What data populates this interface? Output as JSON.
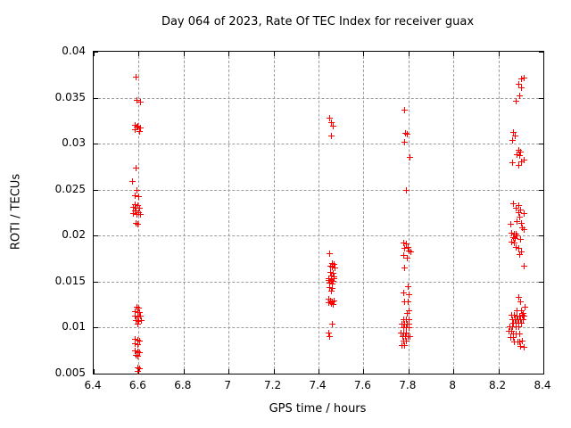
{
  "chart_data": {
    "type": "scatter",
    "title": "Day 064 of 2023, Rate Of TEC Index for receiver guax",
    "xlabel": "GPS time / hours",
    "ylabel": "ROTI / TECUs",
    "xlim": [
      6.4,
      8.4
    ],
    "ylim": [
      0.005,
      0.04
    ],
    "xticks": [
      {
        "value": 6.4,
        "label": "6.4"
      },
      {
        "value": 6.6,
        "label": "6.6"
      },
      {
        "value": 6.8,
        "label": "6.8"
      },
      {
        "value": 7.0,
        "label": "7"
      },
      {
        "value": 7.2,
        "label": "7.2"
      },
      {
        "value": 7.4,
        "label": "7.4"
      },
      {
        "value": 7.6,
        "label": "7.6"
      },
      {
        "value": 7.8,
        "label": "7.8"
      },
      {
        "value": 8.0,
        "label": "8"
      },
      {
        "value": 8.2,
        "label": "8.2"
      },
      {
        "value": 8.4,
        "label": "8.4"
      }
    ],
    "yticks": [
      {
        "value": 0.005,
        "label": "0.005"
      },
      {
        "value": 0.01,
        "label": "0.01"
      },
      {
        "value": 0.015,
        "label": "0.015"
      },
      {
        "value": 0.02,
        "label": "0.02"
      },
      {
        "value": 0.025,
        "label": "0.025"
      },
      {
        "value": 0.03,
        "label": "0.03"
      },
      {
        "value": 0.035,
        "label": "0.035"
      },
      {
        "value": 0.04,
        "label": "0.04"
      }
    ],
    "grid": true,
    "grid_color": "#9c9c9c",
    "legend": "none",
    "marker": "plus",
    "marker_color": "#ff0000",
    "marker_size": 7,
    "series": [
      {
        "name": "ROTI",
        "points": [
          [
            6.59,
            0.0372
          ],
          [
            6.595,
            0.0347
          ],
          [
            6.61,
            0.0345
          ],
          [
            6.585,
            0.032
          ],
          [
            6.6,
            0.0319
          ],
          [
            6.594,
            0.0318
          ],
          [
            6.612,
            0.0317
          ],
          [
            6.588,
            0.0315
          ],
          [
            6.605,
            0.0313
          ],
          [
            6.59,
            0.0273
          ],
          [
            6.575,
            0.0258
          ],
          [
            6.595,
            0.0249
          ],
          [
            6.588,
            0.0243
          ],
          [
            6.601,
            0.0242
          ],
          [
            6.585,
            0.0233
          ],
          [
            6.598,
            0.0232
          ],
          [
            6.578,
            0.023
          ],
          [
            6.592,
            0.0229
          ],
          [
            6.606,
            0.0229
          ],
          [
            6.588,
            0.0226
          ],
          [
            6.601,
            0.0225
          ],
          [
            6.578,
            0.0224
          ],
          [
            6.595,
            0.0223
          ],
          [
            6.61,
            0.0223
          ],
          [
            6.59,
            0.0213
          ],
          [
            6.6,
            0.0212
          ],
          [
            6.593,
            0.0122
          ],
          [
            6.601,
            0.0121
          ],
          [
            6.585,
            0.0117
          ],
          [
            6.597,
            0.0116
          ],
          [
            6.608,
            0.0116
          ],
          [
            6.585,
            0.0112
          ],
          [
            6.599,
            0.0111
          ],
          [
            6.612,
            0.0112
          ],
          [
            6.59,
            0.0107
          ],
          [
            6.602,
            0.0106
          ],
          [
            6.614,
            0.0107
          ],
          [
            6.597,
            0.0103
          ],
          [
            6.585,
            0.0087
          ],
          [
            6.598,
            0.0086
          ],
          [
            6.608,
            0.0085
          ],
          [
            6.588,
            0.0082
          ],
          [
            6.6,
            0.0081
          ],
          [
            6.587,
            0.0074
          ],
          [
            6.598,
            0.0073
          ],
          [
            6.608,
            0.0072
          ],
          [
            6.59,
            0.0069
          ],
          [
            6.6,
            0.0068
          ],
          [
            6.6,
            0.0056
          ],
          [
            6.608,
            0.0055
          ],
          [
            6.597,
            0.0052
          ],
          [
            7.451,
            0.0327
          ],
          [
            7.458,
            0.0322
          ],
          [
            7.468,
            0.0319
          ],
          [
            7.46,
            0.0308
          ],
          [
            7.452,
            0.018
          ],
          [
            7.462,
            0.0169
          ],
          [
            7.472,
            0.0168
          ],
          [
            7.455,
            0.0166
          ],
          [
            7.465,
            0.0165
          ],
          [
            7.475,
            0.0164
          ],
          [
            7.456,
            0.016
          ],
          [
            7.468,
            0.0159
          ],
          [
            7.458,
            0.0156
          ],
          [
            7.47,
            0.0155
          ],
          [
            7.448,
            0.0153
          ],
          [
            7.46,
            0.0152
          ],
          [
            7.473,
            0.0153
          ],
          [
            7.446,
            0.0151
          ],
          [
            7.458,
            0.0151
          ],
          [
            7.468,
            0.015
          ],
          [
            7.452,
            0.0148
          ],
          [
            7.464,
            0.0147
          ],
          [
            7.453,
            0.0143
          ],
          [
            7.465,
            0.0142
          ],
          [
            7.458,
            0.0139
          ],
          [
            7.446,
            0.013
          ],
          [
            7.455,
            0.0129
          ],
          [
            7.464,
            0.0128
          ],
          [
            7.472,
            0.0129
          ],
          [
            7.449,
            0.0127
          ],
          [
            7.459,
            0.0126
          ],
          [
            7.468,
            0.0125
          ],
          [
            7.465,
            0.0103
          ],
          [
            7.448,
            0.0094
          ],
          [
            7.452,
            0.009
          ],
          [
            7.785,
            0.0336
          ],
          [
            7.789,
            0.0311
          ],
          [
            7.796,
            0.031
          ],
          [
            7.784,
            0.0301
          ],
          [
            7.809,
            0.0285
          ],
          [
            7.793,
            0.0249
          ],
          [
            7.781,
            0.0192
          ],
          [
            7.793,
            0.0191
          ],
          [
            7.8,
            0.0187
          ],
          [
            7.785,
            0.0186
          ],
          [
            7.805,
            0.0183
          ],
          [
            7.813,
            0.0182
          ],
          [
            7.782,
            0.0178
          ],
          [
            7.797,
            0.0175
          ],
          [
            7.786,
            0.0164
          ],
          [
            7.801,
            0.0144
          ],
          [
            7.781,
            0.0137
          ],
          [
            7.805,
            0.0135
          ],
          [
            7.785,
            0.0128
          ],
          [
            7.801,
            0.0128
          ],
          [
            7.805,
            0.0118
          ],
          [
            7.797,
            0.0115
          ],
          [
            7.78,
            0.0108
          ],
          [
            7.794,
            0.0108
          ],
          [
            7.804,
            0.0108
          ],
          [
            7.772,
            0.0103
          ],
          [
            7.784,
            0.0103
          ],
          [
            7.796,
            0.0103
          ],
          [
            7.806,
            0.0103
          ],
          [
            7.779,
            0.0099
          ],
          [
            7.791,
            0.0099
          ],
          [
            7.803,
            0.0099
          ],
          [
            7.769,
            0.0094
          ],
          [
            7.781,
            0.0094
          ],
          [
            7.793,
            0.0094
          ],
          [
            7.775,
            0.009
          ],
          [
            7.787,
            0.009
          ],
          [
            7.799,
            0.009
          ],
          [
            7.808,
            0.009
          ],
          [
            7.782,
            0.0085
          ],
          [
            7.794,
            0.0085
          ],
          [
            7.772,
            0.008
          ],
          [
            7.784,
            0.008
          ],
          [
            8.318,
            0.0371
          ],
          [
            8.306,
            0.037
          ],
          [
            8.294,
            0.0364
          ],
          [
            8.306,
            0.036
          ],
          [
            8.298,
            0.0352
          ],
          [
            8.282,
            0.0346
          ],
          [
            8.27,
            0.0312
          ],
          [
            8.278,
            0.0308
          ],
          [
            8.266,
            0.0303
          ],
          [
            8.294,
            0.0292
          ],
          [
            8.302,
            0.029
          ],
          [
            8.286,
            0.0288
          ],
          [
            8.298,
            0.0287
          ],
          [
            8.318,
            0.0282
          ],
          [
            8.306,
            0.028
          ],
          [
            8.266,
            0.0279
          ],
          [
            8.294,
            0.0276
          ],
          [
            8.27,
            0.0234
          ],
          [
            8.294,
            0.0232
          ],
          [
            8.282,
            0.0229
          ],
          [
            8.302,
            0.0227
          ],
          [
            8.294,
            0.0225
          ],
          [
            8.318,
            0.0224
          ],
          [
            8.298,
            0.022
          ],
          [
            8.286,
            0.0215
          ],
          [
            8.258,
            0.0212
          ],
          [
            8.306,
            0.0213
          ],
          [
            8.31,
            0.0208
          ],
          [
            8.318,
            0.0206
          ],
          [
            8.262,
            0.0202
          ],
          [
            8.274,
            0.0201
          ],
          [
            8.282,
            0.0201
          ],
          [
            8.286,
            0.0199
          ],
          [
            8.27,
            0.0197
          ],
          [
            8.278,
            0.0196
          ],
          [
            8.302,
            0.0195
          ],
          [
            8.262,
            0.0193
          ],
          [
            8.274,
            0.0192
          ],
          [
            8.282,
            0.0187
          ],
          [
            8.294,
            0.0186
          ],
          [
            8.306,
            0.0182
          ],
          [
            8.298,
            0.0179
          ],
          [
            8.318,
            0.0166
          ],
          [
            8.294,
            0.0132
          ],
          [
            8.302,
            0.0128
          ],
          [
            8.322,
            0.0122
          ],
          [
            8.286,
            0.0118
          ],
          [
            8.306,
            0.0118
          ],
          [
            8.314,
            0.0115
          ],
          [
            8.262,
            0.0113
          ],
          [
            8.274,
            0.0113
          ],
          [
            8.286,
            0.0112
          ],
          [
            8.298,
            0.0112
          ],
          [
            8.31,
            0.0113
          ],
          [
            8.318,
            0.0112
          ],
          [
            8.266,
            0.0108
          ],
          [
            8.278,
            0.0108
          ],
          [
            8.29,
            0.0108
          ],
          [
            8.302,
            0.0108
          ],
          [
            8.314,
            0.0108
          ],
          [
            8.27,
            0.0104
          ],
          [
            8.282,
            0.0104
          ],
          [
            8.294,
            0.0104
          ],
          [
            8.306,
            0.0104
          ],
          [
            8.254,
            0.01
          ],
          [
            8.266,
            0.01
          ],
          [
            8.282,
            0.01
          ],
          [
            8.294,
            0.01
          ],
          [
            8.25,
            0.0096
          ],
          [
            8.262,
            0.0096
          ],
          [
            8.27,
            0.0093
          ],
          [
            8.282,
            0.0093
          ],
          [
            8.298,
            0.0093
          ],
          [
            8.258,
            0.0089
          ],
          [
            8.268,
            0.0089
          ],
          [
            8.274,
            0.0084
          ],
          [
            8.288,
            0.0084
          ],
          [
            8.298,
            0.0084
          ],
          [
            8.31,
            0.0085
          ],
          [
            8.302,
            0.0079
          ],
          [
            8.318,
            0.0078
          ]
        ]
      }
    ]
  }
}
